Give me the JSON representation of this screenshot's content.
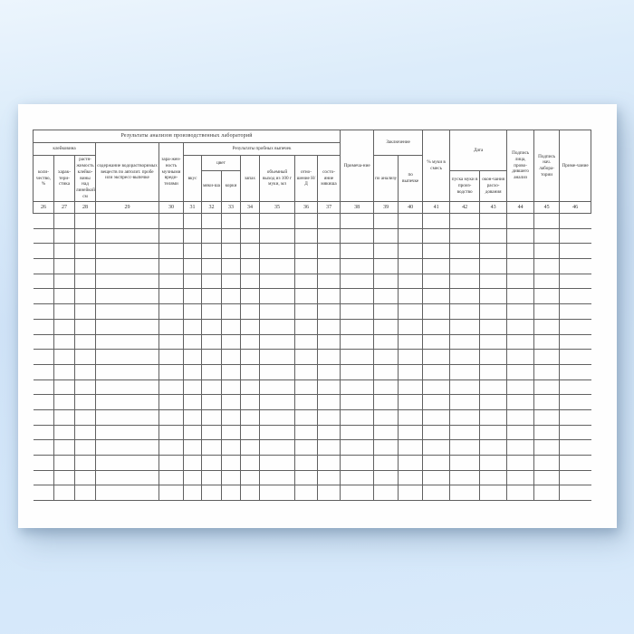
{
  "table": {
    "top_header": "Результаты анализов производственных лабораторий",
    "groups": {
      "gluten": "клейковина",
      "trial_bakes": "Результаты пробных выпечек",
      "color": "цвет",
      "conclusion": "Заключение",
      "date": "Дата"
    },
    "columns": {
      "c26": "коли­чество, %",
      "c27": "харак-тери-стика",
      "c28": "растя-жимость клейко-вины над линейкой, см",
      "c29": "содержание водорастворимых веществ по автолит. пробе или экспресс-выпечке",
      "c30": "зара-жен-ность мучными вреди-телями",
      "c31": "вкус",
      "c32": "мяки-ша",
      "c33": "корки",
      "c34": "запах",
      "c35": "объемный выход из 100 г муки, мл",
      "c36": "отно-шение Н/Д",
      "c37": "состо-яние мякиша",
      "c38": "Примеча-ние",
      "c39": "по анализу",
      "c40": "по выпечке",
      "c41": "% муки в смесь",
      "c42": "пуска муки в произ-водство",
      "c43": "окон-чания расхо-дования",
      "c44": "Подпись лица, прово-дившего анализ",
      "c45": "Подпись нач. лабора-тории",
      "c46": "Приме-чание"
    },
    "column_numbers": [
      "26",
      "27",
      "28",
      "29",
      "30",
      "31",
      "32",
      "33",
      "34",
      "35",
      "36",
      "37",
      "38",
      "39",
      "40",
      "41",
      "42",
      "43",
      "44",
      "45",
      "46"
    ],
    "data_row_count": 19
  },
  "colors": {
    "grid_line": "#606060",
    "page_background": "#fefefe",
    "backdrop_top": "#ecf5fd",
    "backdrop_bottom": "#d9eafb",
    "text": "#333333"
  }
}
